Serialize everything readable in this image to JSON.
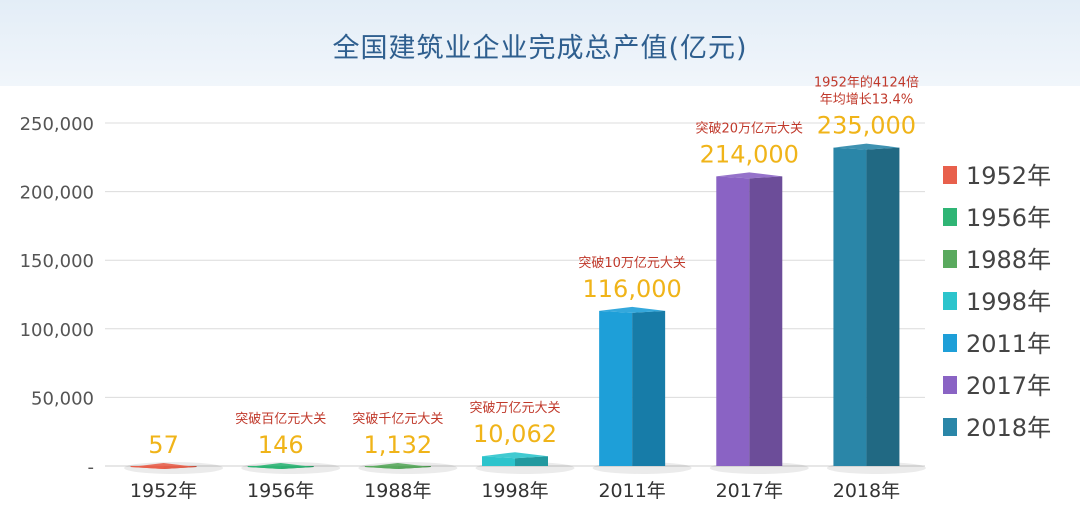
{
  "chart_data": {
    "type": "bar",
    "title": "全国建筑业企业完成总产值(亿元)",
    "categories": [
      "1952年",
      "1956年",
      "1988年",
      "1998年",
      "2011年",
      "2017年",
      "2018年"
    ],
    "values": [
      57,
      146,
      1132,
      10062,
      116000,
      214000,
      235000
    ],
    "value_labels": [
      "57",
      "146",
      "1,132",
      "10,062",
      "116,000",
      "214,000",
      "235,000"
    ],
    "annotations": [
      [],
      [
        "突破百亿元大关"
      ],
      [
        "突破千亿元大关"
      ],
      [
        "突破万亿元大关"
      ],
      [
        "突破10万亿元大关"
      ],
      [
        "突破20万亿元大关"
      ],
      [
        "1952年的4124倍",
        "年均增长13.4%"
      ]
    ],
    "colors": [
      "#e8604c",
      "#2fb575",
      "#5aaa5e",
      "#2cc4cc",
      "#1e9fd8",
      "#8a63c4",
      "#2a86a8"
    ],
    "ylim": [
      0,
      250000
    ],
    "yticks": [
      0,
      50000,
      100000,
      150000,
      200000,
      250000
    ],
    "ytick_labels": [
      "-",
      "50,000",
      "100,000",
      "150,000",
      "200,000",
      "250,000"
    ],
    "grid": true,
    "legend": {
      "position": "right",
      "entries": [
        "1952年",
        "1956年",
        "1988年",
        "1998年",
        "2011年",
        "2017年",
        "2018年"
      ]
    },
    "xlabel": "",
    "ylabel": ""
  }
}
